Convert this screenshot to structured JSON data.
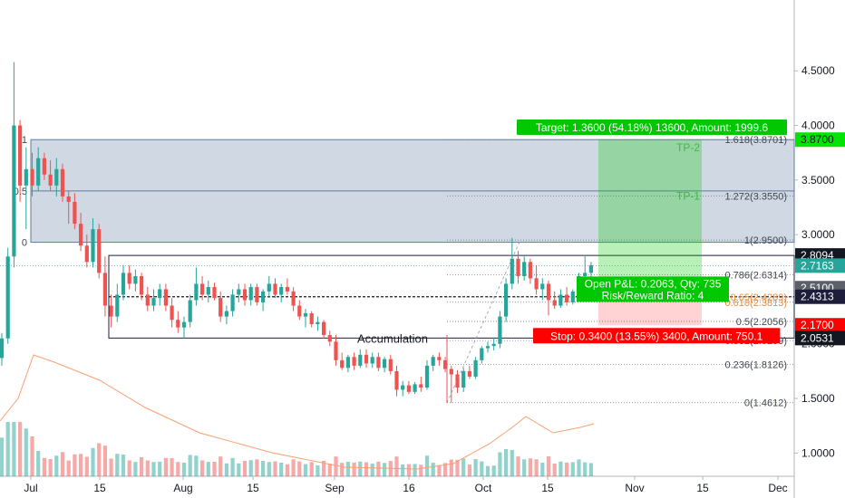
{
  "chart_data": {
    "type": "candlestick",
    "x_ticks": [
      "Jul",
      "15",
      "Aug",
      "15",
      "Sep",
      "16",
      "Oct",
      "15",
      "Nov",
      "15",
      "Dec"
    ],
    "y_ticks": [
      1.0,
      1.5,
      2.0,
      2.5,
      3.0,
      3.5,
      4.0,
      4.5
    ],
    "ylim": [
      0.92,
      4.9
    ],
    "price_tags": [
      {
        "label": "3.8700",
        "price": 3.87,
        "bg": "#00e400",
        "fg": "#131722"
      },
      {
        "label": "2.8094",
        "price": 2.8094,
        "bg": "#131722",
        "fg": "#ffffff"
      },
      {
        "label": "2.7163",
        "price": 2.7163,
        "bg": "#26a69a",
        "fg": "#ffffff"
      },
      {
        "label": "2.5100",
        "price": 2.51,
        "bg": "#5d606b",
        "fg": "#ffffff"
      },
      {
        "label": "2.4313",
        "price": 2.4313,
        "bg": "#1e1e3c",
        "fg": "#ffffff"
      },
      {
        "label": "2.1700",
        "price": 2.17,
        "bg": "#ff0000",
        "fg": "#ffffff"
      },
      {
        "label": "2.0531",
        "price": 2.0531,
        "bg": "#131722",
        "fg": "#ffffff"
      }
    ],
    "fib_box_labels": [
      {
        "text": "1",
        "price": 3.87
      },
      {
        "text": "0.5",
        "price": 3.4
      },
      {
        "text": "0",
        "price": 2.93
      }
    ],
    "fib_levels": [
      {
        "label": "1.618(3.8701)",
        "price": 3.8701
      },
      {
        "label": "1.272(3.3550)",
        "price": 3.355
      },
      {
        "label": "1(2.9500)",
        "price": 2.95
      },
      {
        "label": "0.786(2.6314)",
        "price": 2.6314
      },
      {
        "label": "0.65(2.4289)",
        "price": 2.4289
      },
      {
        "label": "0.618(2.3813)",
        "price": 2.3813
      },
      {
        "label": "0.5(2.2056)",
        "price": 2.2056
      },
      {
        "label": "0.382(2.0299)",
        "price": 2.0299
      },
      {
        "label": "0.236(1.8126)",
        "price": 1.8126
      },
      {
        "label": "0(1.4612)",
        "price": 1.4612
      }
    ],
    "annotations": {
      "target": "Target: 1.3600 (54.18%) 13600, Amount: 1999.6",
      "stop": "Stop: 0.3400 (13.55%) 3400, Amount: 750.1",
      "pnl": "Open P&L: 0.2063, Qty: 735",
      "rr": "Risk/Reward Ratio: 4",
      "tp1": "TP-1",
      "tp2": "TP-2",
      "accumulation": "Accumulation"
    },
    "candles": [
      {
        "o": 1.87,
        "h": 2.1,
        "l": 1.8,
        "c": 2.05
      },
      {
        "o": 2.05,
        "h": 2.88,
        "l": 2.0,
        "c": 2.8
      },
      {
        "o": 2.8,
        "h": 4.58,
        "l": 2.7,
        "c": 4.0
      },
      {
        "o": 4.0,
        "h": 4.05,
        "l": 3.3,
        "c": 3.45
      },
      {
        "o": 3.45,
        "h": 3.8,
        "l": 3.05,
        "c": 3.6
      },
      {
        "o": 3.6,
        "h": 3.75,
        "l": 3.35,
        "c": 3.45
      },
      {
        "o": 3.45,
        "h": 3.8,
        "l": 3.4,
        "c": 3.7
      },
      {
        "o": 3.7,
        "h": 3.75,
        "l": 3.5,
        "c": 3.55
      },
      {
        "o": 3.55,
        "h": 3.68,
        "l": 3.4,
        "c": 3.45
      },
      {
        "o": 3.45,
        "h": 3.7,
        "l": 3.35,
        "c": 3.6
      },
      {
        "o": 3.6,
        "h": 3.65,
        "l": 3.3,
        "c": 3.35
      },
      {
        "o": 3.35,
        "h": 3.4,
        "l": 3.1,
        "c": 3.3
      },
      {
        "o": 3.3,
        "h": 3.38,
        "l": 3.05,
        "c": 3.1
      },
      {
        "o": 3.1,
        "h": 3.2,
        "l": 2.85,
        "c": 2.9
      },
      {
        "o": 2.9,
        "h": 3.0,
        "l": 2.7,
        "c": 2.75
      },
      {
        "o": 2.75,
        "h": 3.15,
        "l": 2.7,
        "c": 3.05
      },
      {
        "o": 3.05,
        "h": 3.1,
        "l": 2.6,
        "c": 2.65
      },
      {
        "o": 2.65,
        "h": 2.8,
        "l": 2.25,
        "c": 2.35
      },
      {
        "o": 2.35,
        "h": 2.45,
        "l": 2.15,
        "c": 2.25
      },
      {
        "o": 2.25,
        "h": 2.55,
        "l": 2.2,
        "c": 2.45
      },
      {
        "o": 2.45,
        "h": 2.72,
        "l": 2.4,
        "c": 2.65
      },
      {
        "o": 2.65,
        "h": 2.72,
        "l": 2.5,
        "c": 2.55
      },
      {
        "o": 2.55,
        "h": 2.68,
        "l": 2.48,
        "c": 2.62
      },
      {
        "o": 2.62,
        "h": 2.65,
        "l": 2.4,
        "c": 2.45
      },
      {
        "o": 2.45,
        "h": 2.52,
        "l": 2.3,
        "c": 2.35
      },
      {
        "o": 2.35,
        "h": 2.5,
        "l": 2.3,
        "c": 2.42
      },
      {
        "o": 2.42,
        "h": 2.55,
        "l": 2.35,
        "c": 2.5
      },
      {
        "o": 2.5,
        "h": 2.55,
        "l": 2.3,
        "c": 2.35
      },
      {
        "o": 2.35,
        "h": 2.42,
        "l": 2.15,
        "c": 2.22
      },
      {
        "o": 2.22,
        "h": 2.3,
        "l": 2.1,
        "c": 2.15
      },
      {
        "o": 2.15,
        "h": 2.25,
        "l": 2.05,
        "c": 2.2
      },
      {
        "o": 2.2,
        "h": 2.45,
        "l": 2.15,
        "c": 2.4
      },
      {
        "o": 2.4,
        "h": 2.7,
        "l": 2.35,
        "c": 2.55
      },
      {
        "o": 2.55,
        "h": 2.62,
        "l": 2.4,
        "c": 2.45
      },
      {
        "o": 2.45,
        "h": 2.58,
        "l": 2.38,
        "c": 2.52
      },
      {
        "o": 2.52,
        "h": 2.56,
        "l": 2.4,
        "c": 2.42
      },
      {
        "o": 2.42,
        "h": 2.48,
        "l": 2.2,
        "c": 2.25
      },
      {
        "o": 2.25,
        "h": 2.35,
        "l": 2.18,
        "c": 2.3
      },
      {
        "o": 2.3,
        "h": 2.5,
        "l": 2.25,
        "c": 2.45
      },
      {
        "o": 2.45,
        "h": 2.55,
        "l": 2.38,
        "c": 2.5
      },
      {
        "o": 2.5,
        "h": 2.55,
        "l": 2.35,
        "c": 2.4
      },
      {
        "o": 2.4,
        "h": 2.55,
        "l": 2.35,
        "c": 2.52
      },
      {
        "o": 2.52,
        "h": 2.55,
        "l": 2.35,
        "c": 2.38
      },
      {
        "o": 2.38,
        "h": 2.5,
        "l": 2.3,
        "c": 2.48
      },
      {
        "o": 2.48,
        "h": 2.62,
        "l": 2.42,
        "c": 2.55
      },
      {
        "o": 2.55,
        "h": 2.6,
        "l": 2.42,
        "c": 2.45
      },
      {
        "o": 2.45,
        "h": 2.55,
        "l": 2.38,
        "c": 2.52
      },
      {
        "o": 2.52,
        "h": 2.6,
        "l": 2.45,
        "c": 2.48
      },
      {
        "o": 2.48,
        "h": 2.52,
        "l": 2.3,
        "c": 2.35
      },
      {
        "o": 2.35,
        "h": 2.4,
        "l": 2.22,
        "c": 2.25
      },
      {
        "o": 2.25,
        "h": 2.32,
        "l": 2.15,
        "c": 2.28
      },
      {
        "o": 2.28,
        "h": 2.3,
        "l": 2.15,
        "c": 2.18
      },
      {
        "o": 2.18,
        "h": 2.25,
        "l": 2.12,
        "c": 2.2
      },
      {
        "o": 2.2,
        "h": 2.22,
        "l": 2.05,
        "c": 2.08
      },
      {
        "o": 2.08,
        "h": 2.12,
        "l": 1.98,
        "c": 2.02
      },
      {
        "o": 2.02,
        "h": 2.08,
        "l": 1.8,
        "c": 1.85
      },
      {
        "o": 1.85,
        "h": 1.92,
        "l": 1.76,
        "c": 1.78
      },
      {
        "o": 1.78,
        "h": 1.9,
        "l": 1.74,
        "c": 1.88
      },
      {
        "o": 1.88,
        "h": 1.92,
        "l": 1.76,
        "c": 1.8
      },
      {
        "o": 1.8,
        "h": 1.95,
        "l": 1.78,
        "c": 1.9
      },
      {
        "o": 1.9,
        "h": 1.95,
        "l": 1.78,
        "c": 1.82
      },
      {
        "o": 1.82,
        "h": 1.92,
        "l": 1.78,
        "c": 1.88
      },
      {
        "o": 1.88,
        "h": 1.92,
        "l": 1.75,
        "c": 1.78
      },
      {
        "o": 1.78,
        "h": 1.88,
        "l": 1.74,
        "c": 1.86
      },
      {
        "o": 1.86,
        "h": 1.9,
        "l": 1.72,
        "c": 1.75
      },
      {
        "o": 1.75,
        "h": 1.8,
        "l": 1.52,
        "c": 1.58
      },
      {
        "o": 1.58,
        "h": 1.66,
        "l": 1.52,
        "c": 1.62
      },
      {
        "o": 1.62,
        "h": 1.66,
        "l": 1.54,
        "c": 1.56
      },
      {
        "o": 1.56,
        "h": 1.65,
        "l": 1.54,
        "c": 1.63
      },
      {
        "o": 1.63,
        "h": 1.7,
        "l": 1.56,
        "c": 1.6
      },
      {
        "o": 1.6,
        "h": 1.85,
        "l": 1.58,
        "c": 1.8
      },
      {
        "o": 1.8,
        "h": 1.9,
        "l": 1.75,
        "c": 1.88
      },
      {
        "o": 1.88,
        "h": 1.92,
        "l": 1.8,
        "c": 1.85
      },
      {
        "o": 1.85,
        "h": 1.88,
        "l": 1.74,
        "c": 1.77
      },
      {
        "o": 1.77,
        "h": 1.8,
        "l": 1.46,
        "c": 1.72
      },
      {
        "o": 1.72,
        "h": 1.76,
        "l": 1.55,
        "c": 1.6
      },
      {
        "o": 1.6,
        "h": 1.78,
        "l": 1.56,
        "c": 1.75
      },
      {
        "o": 1.75,
        "h": 1.8,
        "l": 1.68,
        "c": 1.7
      },
      {
        "o": 1.7,
        "h": 1.88,
        "l": 1.68,
        "c": 1.85
      },
      {
        "o": 1.85,
        "h": 1.98,
        "l": 1.82,
        "c": 1.96
      },
      {
        "o": 1.96,
        "h": 2.02,
        "l": 1.92,
        "c": 1.98
      },
      {
        "o": 1.98,
        "h": 2.06,
        "l": 1.94,
        "c": 2.0
      },
      {
        "o": 2.0,
        "h": 2.3,
        "l": 1.96,
        "c": 2.25
      },
      {
        "o": 2.25,
        "h": 2.6,
        "l": 2.2,
        "c": 2.55
      },
      {
        "o": 2.55,
        "h": 2.97,
        "l": 2.5,
        "c": 2.78
      },
      {
        "o": 2.78,
        "h": 2.85,
        "l": 2.55,
        "c": 2.62
      },
      {
        "o": 2.62,
        "h": 2.8,
        "l": 2.58,
        "c": 2.75
      },
      {
        "o": 2.75,
        "h": 2.78,
        "l": 2.55,
        "c": 2.6
      },
      {
        "o": 2.6,
        "h": 2.72,
        "l": 2.45,
        "c": 2.5
      },
      {
        "o": 2.5,
        "h": 2.6,
        "l": 2.4,
        "c": 2.55
      },
      {
        "o": 2.55,
        "h": 2.58,
        "l": 2.26,
        "c": 2.4
      },
      {
        "o": 2.4,
        "h": 2.48,
        "l": 2.32,
        "c": 2.35
      },
      {
        "o": 2.35,
        "h": 2.5,
        "l": 2.33,
        "c": 2.45
      },
      {
        "o": 2.45,
        "h": 2.52,
        "l": 2.35,
        "c": 2.38
      },
      {
        "o": 2.38,
        "h": 2.5,
        "l": 2.36,
        "c": 2.48
      },
      {
        "o": 2.48,
        "h": 2.65,
        "l": 2.45,
        "c": 2.62
      },
      {
        "o": 2.62,
        "h": 2.8,
        "l": 2.55,
        "c": 2.65
      },
      {
        "o": 2.65,
        "h": 2.75,
        "l": 2.6,
        "c": 2.72
      }
    ]
  }
}
